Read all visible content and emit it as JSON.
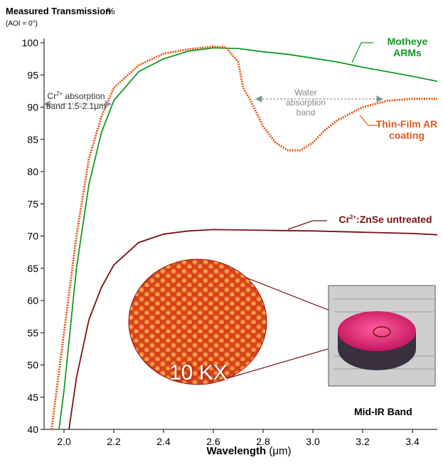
{
  "chart_data": {
    "type": "line",
    "title": "Measured Transmission",
    "y_unit": "%",
    "subtitle": "(AOI = 0°)",
    "x_label": "Wavelength (μm)",
    "xlim": [
      1.92,
      3.5
    ],
    "ylim": [
      40,
      100
    ],
    "xticks": [
      {
        "value": 2.0,
        "label": "2.0"
      },
      2.2,
      2.4,
      2.6,
      2.8,
      {
        "value": 3.0,
        "label": "3.0"
      },
      3.2,
      3.4
    ],
    "yticks": [
      40,
      45,
      50,
      55,
      60,
      65,
      70,
      75,
      80,
      85,
      90,
      95,
      100
    ],
    "series": [
      {
        "name": "Motheye ARMs",
        "color": "#119922",
        "x": [
          1.98,
          2.0,
          2.05,
          2.1,
          2.15,
          2.2,
          2.3,
          2.4,
          2.5,
          2.6,
          2.7,
          2.8,
          2.9,
          3.0,
          3.1,
          3.2,
          3.3,
          3.4,
          3.5
        ],
        "values": [
          40,
          46,
          65,
          78,
          86,
          91,
          95.5,
          97.5,
          98.7,
          99.2,
          99.1,
          98.6,
          98.2,
          97.6,
          97,
          96.2,
          95.5,
          94.8,
          94
        ]
      },
      {
        "name": "Thin-Film AR coating",
        "color": "#e05a1a",
        "x": [
          1.95,
          2.0,
          2.05,
          2.1,
          2.15,
          2.2,
          2.3,
          2.4,
          2.5,
          2.6,
          2.65,
          2.7,
          2.72,
          2.75,
          2.8,
          2.85,
          2.9,
          2.95,
          3.0,
          3.05,
          3.1,
          3.2,
          3.3,
          3.4,
          3.5
        ],
        "values": [
          40,
          55,
          70,
          82,
          88.5,
          93,
          96.5,
          98.3,
          99,
          99.4,
          99.3,
          97,
          93,
          91,
          87,
          84.5,
          83.3,
          83.3,
          84.5,
          86.5,
          88,
          90,
          91,
          91.3,
          91.3
        ]
      },
      {
        "name": "Cr2+:ZnSe untreated",
        "color": "#7a1010",
        "x": [
          2.02,
          2.05,
          2.1,
          2.15,
          2.2,
          2.3,
          2.4,
          2.5,
          2.6,
          2.8,
          3.0,
          3.2,
          3.4,
          3.5
        ],
        "values": [
          40,
          48,
          57,
          62,
          65.5,
          69,
          70.3,
          70.8,
          71,
          70.9,
          70.8,
          70.6,
          70.4,
          70.2
        ]
      }
    ],
    "annotations": {
      "cr_band": "Cr2+ absorption band 1.5-2.1μm",
      "water_band": "Water absorption band",
      "magnification": "10 KX",
      "band": "Mid-IR Band"
    }
  }
}
